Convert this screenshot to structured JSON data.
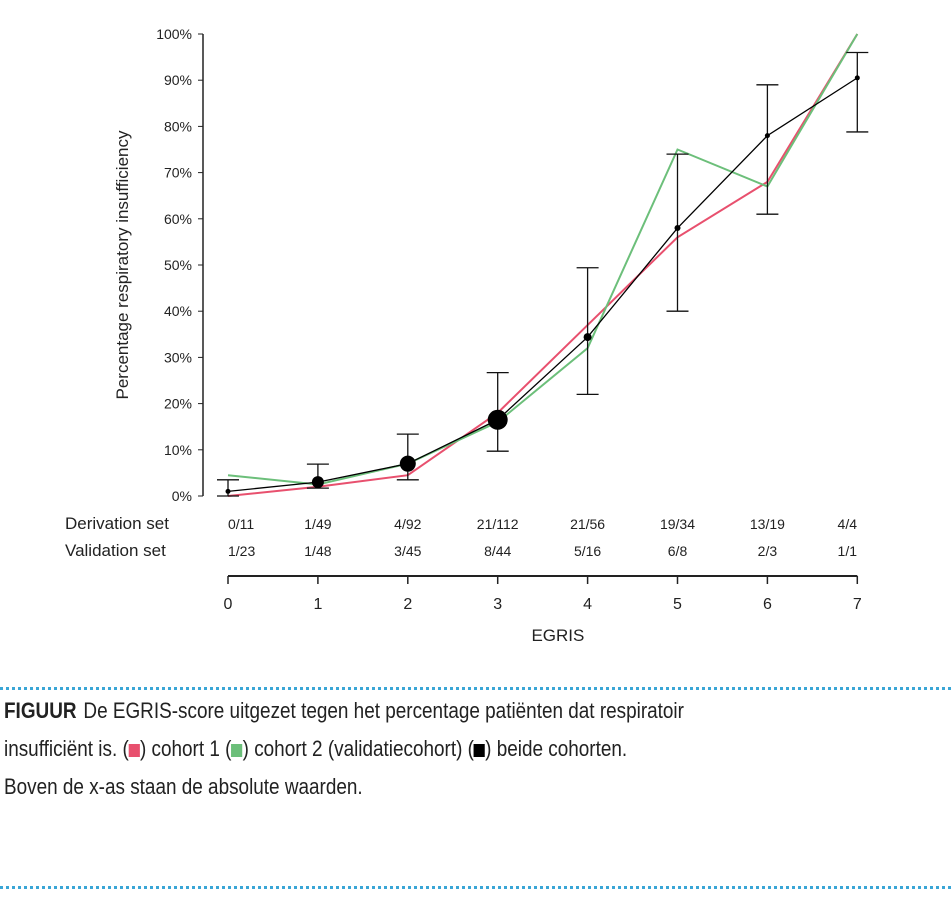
{
  "chart_data": {
    "type": "line",
    "ylabel": "Percentage respiratory insufficiency",
    "xlabel": "EGRIS",
    "x": [
      0,
      1,
      2,
      3,
      4,
      5,
      6,
      7
    ],
    "ylim": [
      0,
      100
    ],
    "yticks": [
      "0%",
      "10%",
      "20%",
      "30%",
      "40%",
      "50%",
      "60%",
      "70%",
      "80%",
      "90%",
      "100%"
    ],
    "series": [
      {
        "color": "#e8506e",
        "values": [
          0,
          2,
          4.5,
          18,
          37,
          56,
          68,
          100
        ]
      },
      {
        "color": "#6cbf7a",
        "values": [
          4.5,
          2.5,
          7,
          16,
          32,
          75,
          67,
          100
        ]
      },
      {
        "color": "#000000",
        "values": [
          1,
          3,
          7,
          16.5,
          34.4,
          58,
          78,
          90.5
        ],
        "error_low": [
          0,
          1.7,
          3.5,
          9.7,
          22,
          40,
          61,
          78.8
        ],
        "error_high": [
          3.5,
          6.9,
          13.4,
          26.7,
          49.4,
          74,
          89,
          96
        ]
      }
    ],
    "table": {
      "rows": [
        {
          "label": "Derivation set",
          "values": [
            "0/11",
            "1/49",
            "4/92",
            "21/112",
            "21/56",
            "19/34",
            "13/19",
            "4/4"
          ]
        },
        {
          "label": "Validation set",
          "values": [
            "1/23",
            "1/48",
            "3/45",
            "8/44",
            "5/16",
            "6/8",
            "2/3",
            "1/1"
          ]
        }
      ]
    }
  },
  "caption": {
    "label": "FIGUUR",
    "line1": "De EGRIS-score uitgezet tegen het percentage patiënten dat respiratoir",
    "line2_a": "insufficiënt is. (",
    "line2_b": ") cohort 1 (",
    "line2_c": ") cohort 2 (validatiecohort) (",
    "line2_d": ") beide cohorten.",
    "line3": "Boven de x-as staan de absolute waarden.",
    "colors": {
      "cohort1": "#e8506e",
      "cohort2": "#6cbf7a",
      "both": "#000000"
    }
  }
}
